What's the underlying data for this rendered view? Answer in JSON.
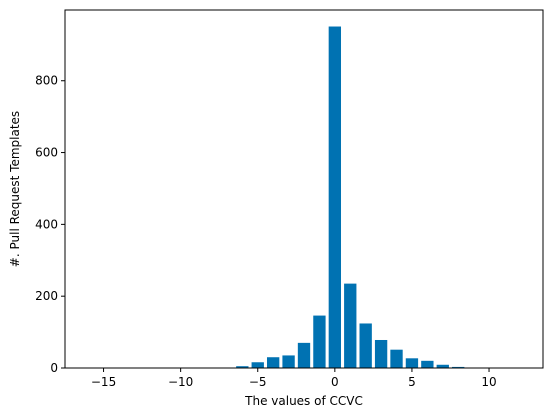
{
  "chart_data": {
    "type": "bar",
    "xlabel": "The values of CCVC",
    "ylabel": "#. Pull Request Templates",
    "xlim": [
      -17.5,
      13.5
    ],
    "ylim": [
      0,
      997
    ],
    "x_ticks": [
      -15,
      -10,
      -5,
      0,
      5,
      10
    ],
    "y_ticks": [
      0,
      200,
      400,
      600,
      800
    ],
    "grid": false,
    "bar_color": "#0072b2",
    "x": [
      -6,
      -5,
      -4,
      -3,
      -2,
      -1,
      0,
      1,
      2,
      3,
      4,
      5,
      6,
      7,
      8
    ],
    "values": [
      5,
      16,
      30,
      35,
      70,
      146,
      951,
      235,
      124,
      78,
      51,
      27,
      20,
      9,
      3
    ]
  }
}
